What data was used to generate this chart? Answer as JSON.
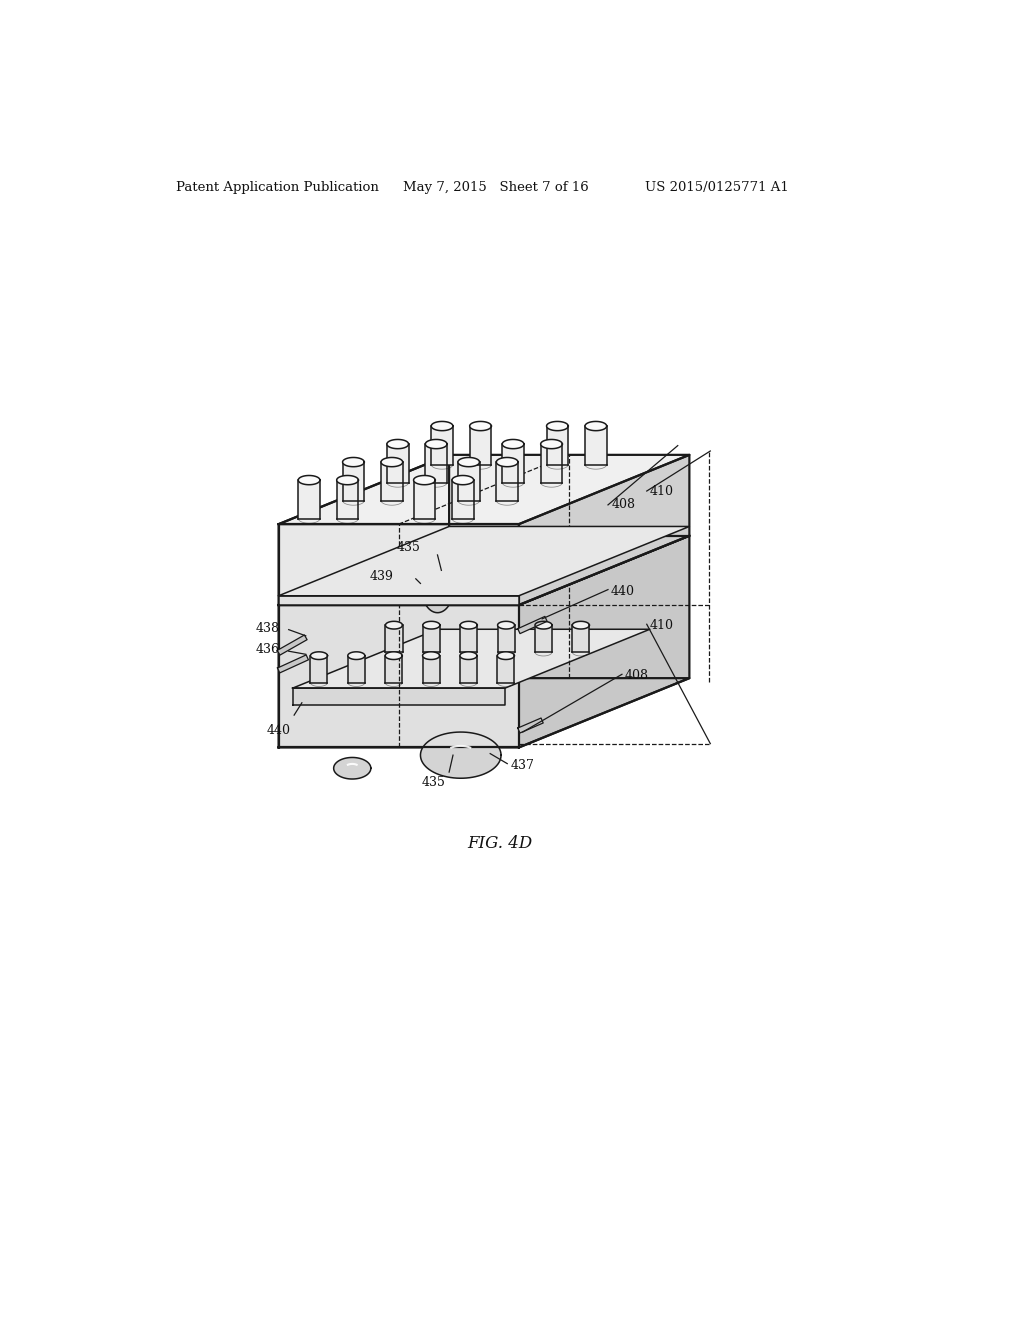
{
  "header_left": "Patent Application Publication",
  "header_middle": "May 7, 2015   Sheet 7 of 16",
  "header_right": "US 2015/0125771 A1",
  "figure_label": "FIG. 4D",
  "bg_color": "#ffffff",
  "lc": "#1a1a1a",
  "labels": [
    "408",
    "410",
    "435",
    "439",
    "440",
    "410",
    "438",
    "436",
    "408",
    "440",
    "435",
    "437"
  ]
}
